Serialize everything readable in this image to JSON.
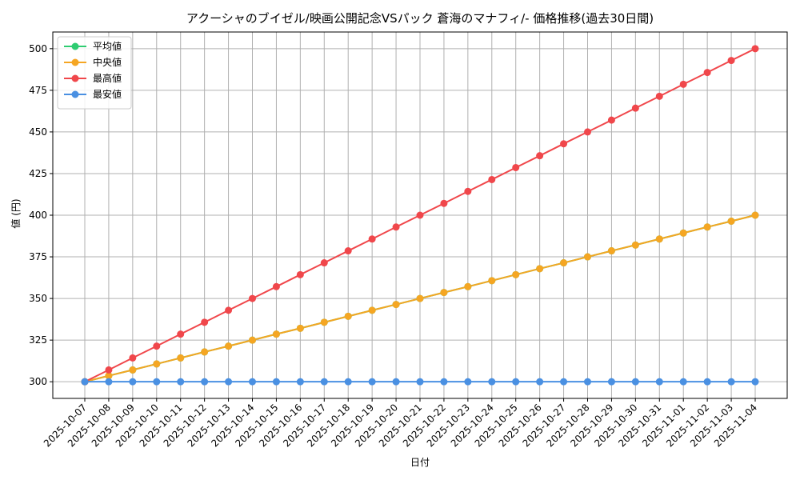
{
  "chart_data": {
    "type": "line",
    "title": "アクーシャのブイゼル/映画公開記念VSパック 蒼海のマナフィ/- 価格推移(過去30日間)",
    "xlabel": "日付",
    "ylabel": "値 (円)",
    "ylim": [
      290,
      510
    ],
    "yticks": [
      300,
      325,
      350,
      375,
      400,
      425,
      450,
      475,
      500
    ],
    "grid": true,
    "legend_position": "top-left",
    "categories": [
      "2025-10-07",
      "2025-10-08",
      "2025-10-09",
      "2025-10-10",
      "2025-10-11",
      "2025-10-12",
      "2025-10-13",
      "2025-10-14",
      "2025-10-15",
      "2025-10-16",
      "2025-10-17",
      "2025-10-18",
      "2025-10-19",
      "2025-10-20",
      "2025-10-21",
      "2025-10-22",
      "2025-10-23",
      "2025-10-24",
      "2025-10-25",
      "2025-10-26",
      "2025-10-27",
      "2025-10-28",
      "2025-10-29",
      "2025-10-30",
      "2025-10-31",
      "2025-11-01",
      "2025-11-02",
      "2025-11-03",
      "2025-11-04"
    ],
    "series": [
      {
        "name": "平均値",
        "color": "#2ecc71",
        "values": [
          300,
          303.6,
          307.1,
          310.7,
          314.3,
          317.9,
          321.4,
          325,
          328.6,
          332.1,
          335.7,
          339.3,
          342.9,
          346.4,
          350,
          353.6,
          357.1,
          360.7,
          364.3,
          367.9,
          371.4,
          375,
          378.6,
          382.1,
          385.7,
          389.3,
          392.9,
          396.4,
          400
        ]
      },
      {
        "name": "中央値",
        "color": "#f5a623",
        "values": [
          300,
          303.6,
          307.1,
          310.7,
          314.3,
          317.9,
          321.4,
          325,
          328.6,
          332.1,
          335.7,
          339.3,
          342.9,
          346.4,
          350,
          353.6,
          357.1,
          360.7,
          364.3,
          367.9,
          371.4,
          375,
          378.6,
          382.1,
          385.7,
          389.3,
          392.9,
          396.4,
          400
        ]
      },
      {
        "name": "最高値",
        "color": "#f0474b",
        "values": [
          300,
          307.1,
          314.3,
          321.4,
          328.6,
          335.7,
          342.9,
          350,
          357.1,
          364.3,
          371.4,
          378.6,
          385.7,
          392.9,
          400,
          407.1,
          414.3,
          421.4,
          428.6,
          435.7,
          442.9,
          450,
          457.1,
          464.3,
          471.4,
          478.6,
          485.7,
          492.9,
          500
        ]
      },
      {
        "name": "最安値",
        "color": "#4a90e2",
        "values": [
          300,
          300,
          300,
          300,
          300,
          300,
          300,
          300,
          300,
          300,
          300,
          300,
          300,
          300,
          300,
          300,
          300,
          300,
          300,
          300,
          300,
          300,
          300,
          300,
          300,
          300,
          300,
          300,
          300
        ]
      }
    ]
  }
}
